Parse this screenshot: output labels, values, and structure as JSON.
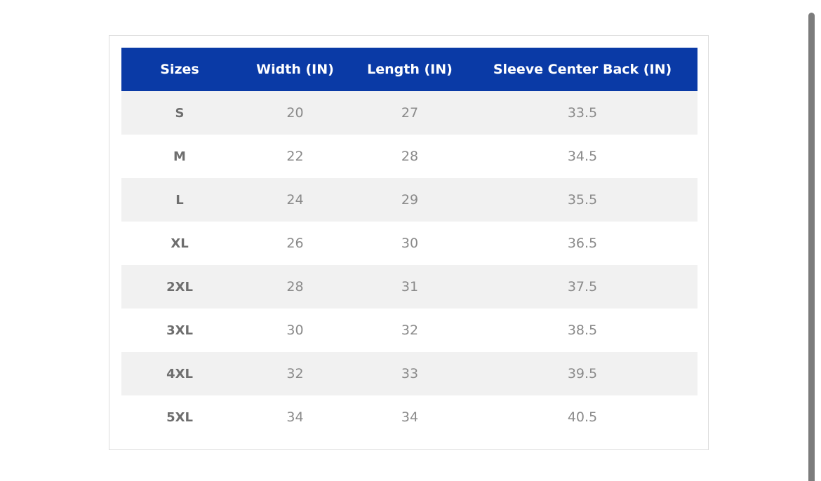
{
  "size_chart": {
    "headers": [
      "Sizes",
      "Width (IN)",
      "Length (IN)",
      "Sleeve Center Back (IN)"
    ],
    "rows": [
      [
        "S",
        "20",
        "27",
        "33.5"
      ],
      [
        "M",
        "22",
        "28",
        "34.5"
      ],
      [
        "L",
        "24",
        "29",
        "35.5"
      ],
      [
        "XL",
        "26",
        "30",
        "36.5"
      ],
      [
        "2XL",
        "28",
        "31",
        "37.5"
      ],
      [
        "3XL",
        "30",
        "32",
        "38.5"
      ],
      [
        "4XL",
        "32",
        "33",
        "39.5"
      ],
      [
        "5XL",
        "34",
        "34",
        "40.5"
      ]
    ]
  },
  "colors": {
    "header_bg": "#0a3aa6",
    "header_text": "#ffffff",
    "row_shaded": "#f1f1f1",
    "row_plain": "#ffffff",
    "cell_text": "#8a8a8a",
    "scrollbar": "#7c7c7c"
  }
}
